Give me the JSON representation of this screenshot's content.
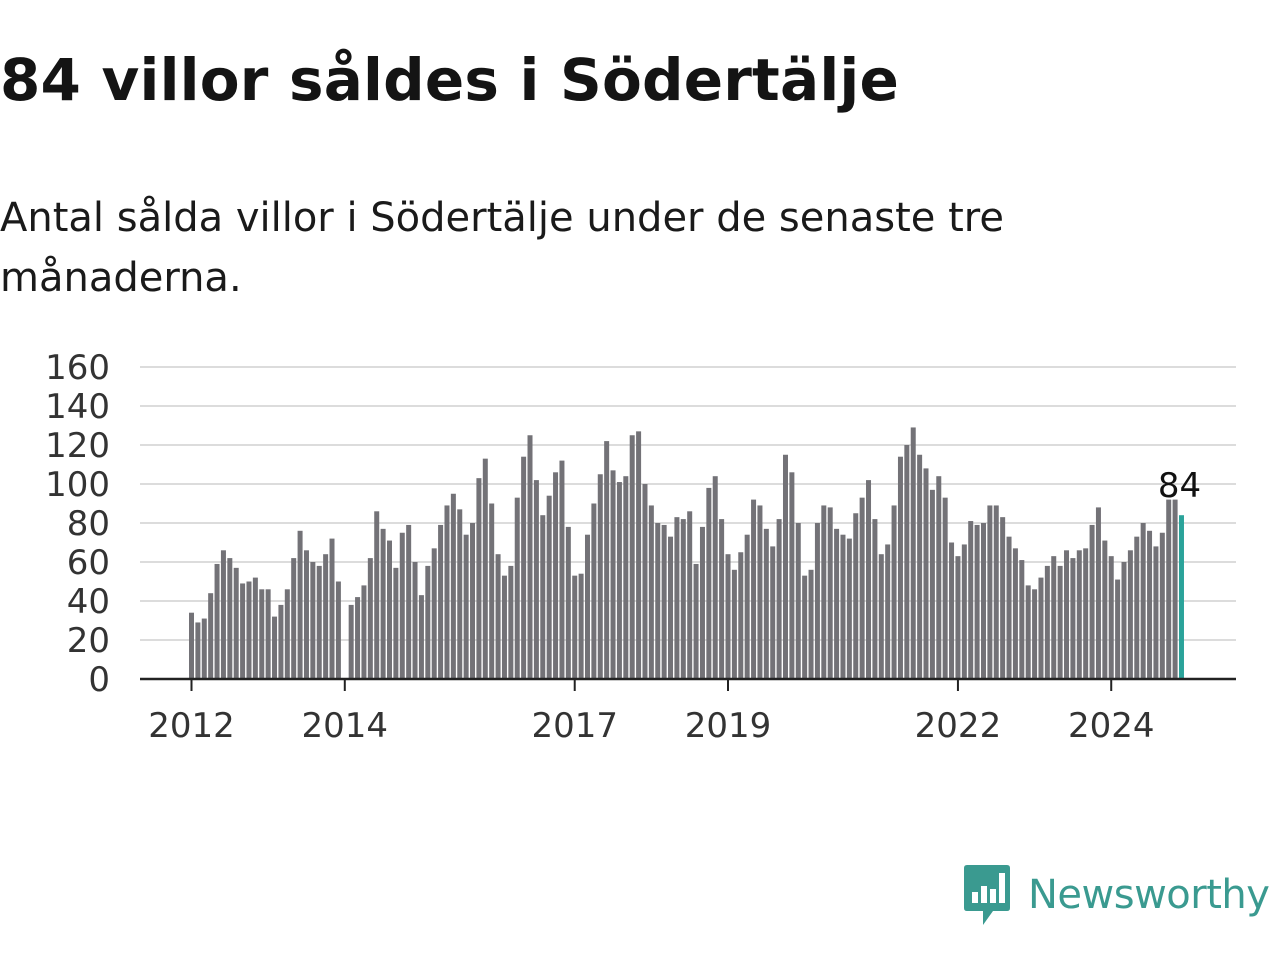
{
  "title": "84 villor såldes i Södertälje",
  "subtitle": "Antal sålda villor i Södertälje under de senaste tre månaderna.",
  "brand": {
    "name": "Newsworthy",
    "color": "#3a9a90"
  },
  "colors": {
    "bar": "#737277",
    "highlight": "#2aa39a",
    "grid": "#dcdcdc",
    "axis": "#222222"
  },
  "chart_data": {
    "type": "bar",
    "title": "",
    "xlabel": "",
    "ylabel": "",
    "ylim": [
      0,
      160
    ],
    "yticks": [
      0,
      20,
      40,
      60,
      80,
      100,
      120,
      140,
      160
    ],
    "xticks": [
      "2012",
      "2014",
      "2017",
      "2019",
      "2022",
      "2024"
    ],
    "grid": true,
    "legend": "none",
    "highlight_label": "84",
    "values": [
      34,
      29,
      31,
      44,
      59,
      66,
      62,
      57,
      49,
      50,
      52,
      46,
      46,
      32,
      38,
      46,
      62,
      76,
      66,
      60,
      58,
      64,
      72,
      50,
      null,
      38,
      42,
      48,
      62,
      86,
      77,
      71,
      57,
      75,
      79,
      60,
      43,
      58,
      67,
      79,
      89,
      95,
      87,
      74,
      80,
      103,
      113,
      90,
      64,
      53,
      58,
      93,
      114,
      125,
      102,
      84,
      94,
      106,
      112,
      78,
      53,
      54,
      74,
      90,
      105,
      122,
      107,
      101,
      104,
      125,
      127,
      100,
      89,
      80,
      79,
      73,
      83,
      82,
      86,
      59,
      78,
      98,
      104,
      82,
      64,
      56,
      65,
      74,
      92,
      89,
      77,
      68,
      82,
      115,
      106,
      80,
      53,
      56,
      80,
      89,
      88,
      77,
      74,
      72,
      85,
      93,
      102,
      82,
      64,
      69,
      89,
      114,
      120,
      129,
      115,
      108,
      97,
      104,
      93,
      70,
      63,
      69,
      81,
      79,
      80,
      89,
      89,
      83,
      73,
      67,
      61,
      48,
      46,
      52,
      58,
      63,
      58,
      66,
      62,
      66,
      67,
      79,
      88,
      71,
      63,
      51,
      60,
      66,
      73,
      80,
      76,
      68,
      75,
      92,
      92,
      84
    ]
  }
}
